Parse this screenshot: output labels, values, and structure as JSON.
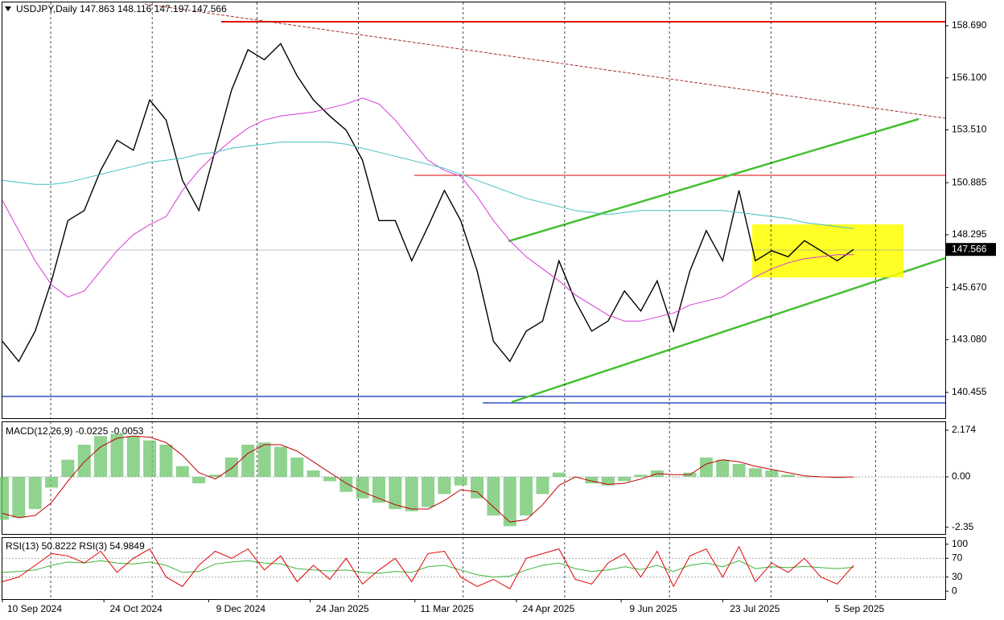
{
  "chart_data": [
    {
      "type": "line",
      "title": "USDJPY,Daily  147.863 148.116 147.197 147.566",
      "x": [
        0,
        5,
        10,
        15,
        20,
        25,
        30,
        35,
        40,
        45,
        50,
        55,
        60,
        65,
        70,
        75,
        80,
        85,
        90,
        95,
        100,
        105,
        110,
        115,
        120,
        125,
        130,
        135,
        140,
        145,
        150,
        155,
        160,
        165,
        170,
        175,
        180,
        185,
        190,
        195,
        200,
        205,
        210,
        215,
        220,
        225,
        230,
        235,
        240,
        245,
        250,
        255,
        260
      ],
      "series": [
        {
          "color": "#000000",
          "values": [
            143.0,
            142.0,
            143.5,
            146.0,
            149.0,
            149.5,
            151.5,
            153.0,
            152.5,
            155.0,
            154.0,
            151.0,
            149.5,
            152.5,
            155.5,
            157.5,
            157.0,
            157.8,
            156.2,
            155.0,
            154.2,
            153.5,
            152.0,
            149.0,
            149.0,
            147.0,
            148.7,
            150.5,
            149.0,
            146.5,
            143.0,
            142.0,
            143.5,
            144.0,
            147.0,
            145.0,
            143.5,
            144.0,
            145.5,
            144.5,
            146.0,
            143.5,
            146.5,
            148.5,
            147.0,
            150.5,
            147.0,
            147.5,
            147.2,
            148.0,
            147.5,
            147.0,
            147.566
          ]
        },
        {
          "color": "#d63ad6",
          "values": [
            150.0,
            148.5,
            147.0,
            145.8,
            145.2,
            145.5,
            146.5,
            147.5,
            148.3,
            148.8,
            149.2,
            150.5,
            151.5,
            152.3,
            153.0,
            153.6,
            154.0,
            154.2,
            154.3,
            154.4,
            154.6,
            154.8,
            155.1,
            154.8,
            154.0,
            153.0,
            152.0,
            151.5,
            151.2,
            150.2,
            149.0,
            148.0,
            147.2,
            146.6,
            146.0,
            145.3,
            144.8,
            144.3,
            144.0,
            144.0,
            144.2,
            144.4,
            144.8,
            145.0,
            145.2,
            145.7,
            146.2,
            146.6,
            146.9,
            147.1,
            147.2,
            147.3,
            147.3
          ]
        },
        {
          "color": "#40c0c0",
          "values": [
            151.0,
            150.9,
            150.8,
            150.8,
            150.9,
            151.1,
            151.3,
            151.5,
            151.7,
            151.9,
            152.0,
            152.1,
            152.3,
            152.4,
            152.6,
            152.7,
            152.8,
            152.9,
            152.9,
            152.9,
            152.9,
            152.8,
            152.6,
            152.4,
            152.2,
            152.0,
            151.8,
            151.6,
            151.3,
            151.0,
            150.7,
            150.4,
            150.1,
            149.9,
            149.7,
            149.5,
            149.4,
            149.3,
            149.4,
            149.5,
            149.5,
            149.5,
            149.5,
            149.5,
            149.5,
            149.4,
            149.3,
            149.2,
            149.1,
            148.9,
            148.8,
            148.7,
            148.6
          ]
        }
      ],
      "xlim": [
        0,
        288
      ],
      "ylim": [
        139.175,
        159.85
      ],
      "yticks": [
        {
          "value": 158.69,
          "label": "158.690"
        },
        {
          "value": 156.1,
          "label": "156.100"
        },
        {
          "value": 153.51,
          "label": "153.510"
        },
        150.885,
        148.295,
        {
          "value": 145.67,
          "label": "145.670"
        },
        {
          "value": 143.08,
          "label": "143.080"
        },
        140.455
      ],
      "grid": true
    },
    {
      "type": "bar",
      "title": "MACD(12,26,9) -0.0225 -0.0053",
      "x": [
        0,
        5,
        10,
        15,
        20,
        25,
        30,
        35,
        40,
        45,
        50,
        55,
        60,
        65,
        70,
        75,
        80,
        85,
        90,
        95,
        100,
        105,
        110,
        115,
        120,
        125,
        130,
        135,
        140,
        145,
        150,
        155,
        160,
        165,
        170,
        175,
        180,
        185,
        190,
        195,
        200,
        205,
        210,
        215,
        220,
        225,
        230,
        235,
        240,
        245,
        250,
        255,
        260
      ],
      "series": [
        {
          "color": "#6ac46a",
          "values": [
            -2.0,
            -1.9,
            -1.5,
            -0.5,
            0.8,
            1.5,
            1.9,
            2.0,
            1.9,
            1.7,
            1.5,
            0.5,
            -0.3,
            0.1,
            0.9,
            1.5,
            1.6,
            1.4,
            0.9,
            0.3,
            -0.2,
            -0.7,
            -1.0,
            -1.2,
            -1.5,
            -1.6,
            -1.4,
            -0.8,
            -0.4,
            -1.0,
            -1.8,
            -2.3,
            -1.8,
            -0.8,
            0.2,
            0.0,
            -0.3,
            -0.4,
            -0.2,
            0.1,
            0.3,
            0.0,
            0.2,
            0.9,
            0.8,
            0.6,
            0.4,
            0.3,
            0.1,
            0.0,
            0.0,
            -0.05,
            -0.02
          ]
        },
        {
          "color": "#c00000",
          "type": "line",
          "values": [
            -1.7,
            -1.9,
            -1.8,
            -1.2,
            -0.2,
            0.7,
            1.4,
            1.8,
            1.9,
            1.85,
            1.6,
            1.0,
            0.2,
            -0.1,
            0.4,
            1.1,
            1.5,
            1.5,
            1.2,
            0.7,
            0.2,
            -0.3,
            -0.7,
            -1.0,
            -1.3,
            -1.5,
            -1.5,
            -1.1,
            -0.6,
            -0.7,
            -1.4,
            -2.1,
            -2.0,
            -1.3,
            -0.4,
            0.0,
            -0.2,
            -0.35,
            -0.3,
            -0.1,
            0.15,
            0.1,
            0.1,
            0.6,
            0.8,
            0.7,
            0.5,
            0.35,
            0.2,
            0.05,
            0.0,
            -0.02,
            -0.005
          ]
        }
      ],
      "xlim": [
        0,
        288
      ],
      "ylim": [
        -2.66,
        2.586
      ],
      "yticks": [
        2.174,
        {
          "value": 0,
          "label": "0.00"
        },
        -2.35
      ]
    },
    {
      "type": "line",
      "title": "RSI(13) 50.8222  RSI(3) 54.9849",
      "x": [
        0,
        5,
        10,
        15,
        20,
        25,
        30,
        35,
        40,
        45,
        50,
        55,
        60,
        65,
        70,
        75,
        80,
        85,
        90,
        95,
        100,
        105,
        110,
        115,
        120,
        125,
        130,
        135,
        140,
        145,
        150,
        155,
        160,
        165,
        170,
        175,
        180,
        185,
        190,
        195,
        200,
        205,
        210,
        215,
        220,
        225,
        230,
        235,
        240,
        245,
        250,
        255,
        260
      ],
      "series": [
        {
          "color": "#3cb33c",
          "values": [
            40,
            42,
            45,
            55,
            62,
            60,
            65,
            60,
            58,
            62,
            55,
            40,
            42,
            58,
            62,
            65,
            60,
            58,
            48,
            45,
            43,
            45,
            40,
            38,
            42,
            40,
            52,
            55,
            45,
            35,
            30,
            32,
            45,
            55,
            60,
            48,
            42,
            45,
            52,
            46,
            55,
            42,
            55,
            60,
            52,
            65,
            48,
            52,
            50,
            53,
            50,
            48,
            50.8222
          ]
        },
        {
          "color": "#e00000",
          "values": [
            20,
            30,
            55,
            80,
            75,
            60,
            85,
            40,
            70,
            90,
            30,
            10,
            55,
            85,
            70,
            90,
            45,
            75,
            20,
            55,
            25,
            70,
            15,
            45,
            70,
            20,
            80,
            85,
            30,
            10,
            25,
            5,
            70,
            80,
            90,
            25,
            15,
            60,
            80,
            30,
            85,
            10,
            75,
            90,
            30,
            95,
            20,
            60,
            40,
            70,
            30,
            15,
            54.9849
          ]
        }
      ],
      "xlim": [
        0,
        288
      ],
      "ylim": [
        -17,
        115
      ],
      "yticks": [
        100,
        70,
        30,
        0
      ],
      "xticks": [
        {
          "value": 0,
          "label": "10 Sep 2024"
        },
        {
          "value": 31,
          "label": "24 Oct 2024"
        },
        {
          "value": 63,
          "label": "9 Dec 2024"
        },
        {
          "value": 94,
          "label": "24 Jan 2025"
        },
        {
          "value": 126,
          "label": "11 Mar 2025"
        },
        {
          "value": 157,
          "label": "24 Apr 2025"
        },
        {
          "value": 189,
          "label": "9 Jun 2025"
        },
        {
          "value": 220,
          "label": "23 Jul 2025"
        },
        {
          "value": 252,
          "label": "5 Sep 2025"
        }
      ]
    }
  ]
}
